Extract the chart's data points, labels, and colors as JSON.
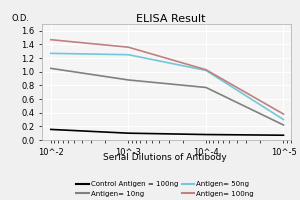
{
  "title": "ELISA Result",
  "ylabel": "O.D.",
  "xlabel": "Serial Dilutions of Antibody",
  "x_ticks": [
    0.01,
    0.001,
    0.0001,
    1e-05
  ],
  "ylim": [
    0,
    1.7
  ],
  "yticks": [
    0,
    0.2,
    0.4,
    0.6,
    0.8,
    1.0,
    1.2,
    1.4,
    1.6
  ],
  "series": [
    {
      "label": "Control Antigen = 100ng",
      "color": "#000000",
      "linewidth": 1.2,
      "y": [
        0.155,
        0.1,
        0.08,
        0.07
      ]
    },
    {
      "label": "Antigen= 10ng",
      "color": "#808080",
      "linewidth": 1.2,
      "y": [
        1.05,
        0.88,
        0.77,
        0.22
      ]
    },
    {
      "label": "Antigen= 50ng",
      "color": "#70c8d8",
      "linewidth": 1.2,
      "y": [
        1.27,
        1.25,
        1.02,
        0.3
      ]
    },
    {
      "label": "Antigen= 100ng",
      "color": "#c08080",
      "linewidth": 1.2,
      "y": [
        1.47,
        1.36,
        1.03,
        0.38
      ]
    }
  ],
  "legend_colors": [
    "#000000",
    "#808080",
    "#70c8d8",
    "#c08080"
  ],
  "legend_labels": [
    "Control Antigen = 100ng",
    "Antigen= 10ng",
    "Antigen= 50ng",
    "Antigen= 100ng"
  ],
  "background_color": "#f0f0f0",
  "plot_bg_color": "#f5f5f5",
  "grid_color": "#ffffff",
  "title_fontsize": 8,
  "label_fontsize": 6,
  "tick_fontsize": 6,
  "legend_fontsize": 5
}
